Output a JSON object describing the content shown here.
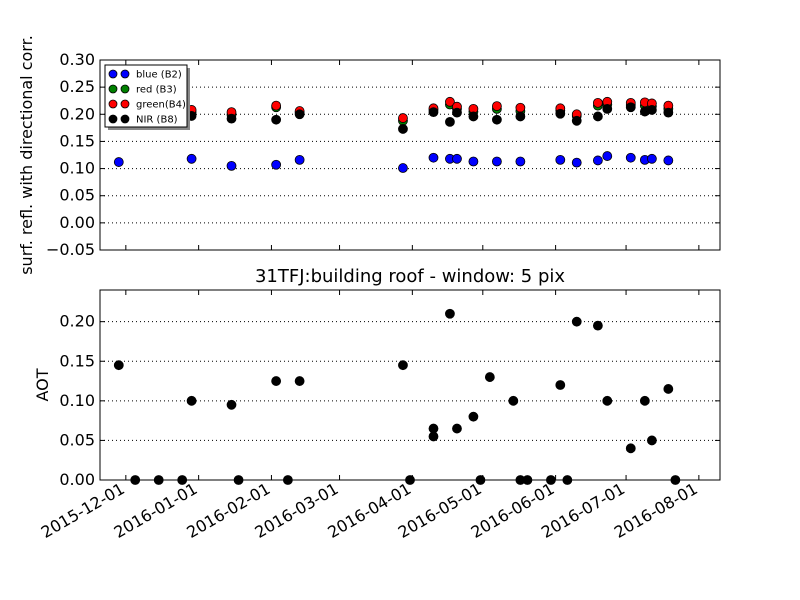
{
  "chart_data": [
    {
      "type": "scatter",
      "title": "",
      "xlabel": "",
      "ylabel": "surf. refl. with directional corr.",
      "ylim": [
        -0.05,
        0.3
      ],
      "yticks": [
        "−0.05",
        "0.00",
        "0.05",
        "0.10",
        "0.15",
        "0.20",
        "0.25",
        "0.30"
      ],
      "ytick_values": [
        -0.05,
        0.0,
        0.05,
        0.1,
        0.15,
        0.2,
        0.25,
        0.3
      ],
      "grid": true,
      "legend_position": "top-left",
      "series": [
        {
          "name": "blue (B2)",
          "color": "#0000ff",
          "x": [
            "2015-11-28",
            "2015-12-29",
            "2016-01-15",
            "2016-02-03",
            "2016-02-13",
            "2016-03-28",
            "2016-04-10",
            "2016-04-17",
            "2016-04-20",
            "2016-04-27",
            "2016-05-07",
            "2016-05-17",
            "2016-06-03",
            "2016-06-10",
            "2016-06-19",
            "2016-06-23",
            "2016-07-03",
            "2016-07-09",
            "2016-07-12",
            "2016-07-19"
          ],
          "y": [
            0.112,
            0.118,
            0.105,
            0.107,
            0.116,
            0.101,
            0.12,
            0.118,
            0.118,
            0.113,
            0.113,
            0.113,
            0.116,
            0.111,
            0.115,
            0.123,
            0.12,
            0.116,
            0.118,
            0.115
          ]
        },
        {
          "name": "red  (B3)",
          "color": "#008000",
          "x": [
            "2015-12-29",
            "2016-01-15",
            "2016-02-03",
            "2016-02-13",
            "2016-03-28",
            "2016-04-10",
            "2016-04-17",
            "2016-04-20",
            "2016-04-27",
            "2016-05-07",
            "2016-05-17",
            "2016-06-03",
            "2016-06-10",
            "2016-06-19",
            "2016-06-23",
            "2016-07-03",
            "2016-07-09",
            "2016-07-12",
            "2016-07-19"
          ],
          "y": [
            0.204,
            0.199,
            0.213,
            0.203,
            0.188,
            0.208,
            0.218,
            0.21,
            0.205,
            0.21,
            0.206,
            0.207,
            0.197,
            0.216,
            0.218,
            0.217,
            0.216,
            0.215,
            0.21
          ]
        },
        {
          "name": "green(B4)",
          "color": "#ff0000",
          "x": [
            "2015-12-29",
            "2016-01-15",
            "2016-02-03",
            "2016-02-13",
            "2016-03-28",
            "2016-04-10",
            "2016-04-17",
            "2016-04-20",
            "2016-04-27",
            "2016-05-07",
            "2016-05-17",
            "2016-06-03",
            "2016-06-10",
            "2016-06-19",
            "2016-06-23",
            "2016-07-03",
            "2016-07-09",
            "2016-07-12",
            "2016-07-19"
          ],
          "y": [
            0.208,
            0.204,
            0.216,
            0.206,
            0.193,
            0.211,
            0.223,
            0.214,
            0.21,
            0.215,
            0.212,
            0.211,
            0.2,
            0.221,
            0.223,
            0.221,
            0.222,
            0.22,
            0.216
          ]
        },
        {
          "name": "NIR  (B8)",
          "color": "#000000",
          "x": [
            "2015-12-29",
            "2016-01-15",
            "2016-02-03",
            "2016-02-13",
            "2016-03-28",
            "2016-04-10",
            "2016-04-17",
            "2016-04-20",
            "2016-04-27",
            "2016-05-07",
            "2016-05-17",
            "2016-06-03",
            "2016-06-10",
            "2016-06-19",
            "2016-06-23",
            "2016-07-03",
            "2016-07-09",
            "2016-07-12",
            "2016-07-19"
          ],
          "y": [
            0.197,
            0.192,
            0.19,
            0.2,
            0.173,
            0.204,
            0.186,
            0.203,
            0.196,
            0.19,
            0.196,
            0.201,
            0.188,
            0.196,
            0.21,
            0.213,
            0.205,
            0.208,
            0.203
          ]
        }
      ]
    },
    {
      "type": "scatter",
      "title": "31TFJ:building roof - window: 5 pix",
      "xlabel": "",
      "ylabel": "AOT",
      "ylim": [
        0.0,
        0.24
      ],
      "yticks": [
        "0.00",
        "0.05",
        "0.10",
        "0.15",
        "0.20"
      ],
      "ytick_values": [
        0.0,
        0.05,
        0.1,
        0.15,
        0.2
      ],
      "grid": true,
      "series": [
        {
          "name": "",
          "color": "#000000",
          "x": [
            "2015-11-28",
            "2015-12-05",
            "2015-12-15",
            "2015-12-25",
            "2015-12-29",
            "2016-01-15",
            "2016-01-18",
            "2016-02-03",
            "2016-02-08",
            "2016-02-13",
            "2016-03-28",
            "2016-03-31",
            "2016-04-10",
            "2016-04-10",
            "2016-04-17",
            "2016-04-20",
            "2016-04-27",
            "2016-04-30",
            "2016-05-04",
            "2016-05-14",
            "2016-05-17",
            "2016-05-20",
            "2016-05-30",
            "2016-06-06",
            "2016-06-03",
            "2016-06-10",
            "2016-06-19",
            "2016-06-23",
            "2016-07-03",
            "2016-07-09",
            "2016-07-12",
            "2016-07-19",
            "2016-07-22"
          ],
          "y": [
            0.145,
            0.0,
            0.0,
            0.0,
            0.1,
            0.095,
            0.0,
            0.125,
            0.0,
            0.125,
            0.145,
            0.0,
            0.065,
            0.055,
            0.21,
            0.065,
            0.08,
            0.0,
            0.13,
            0.1,
            0.0,
            0.0,
            0.0,
            0.0,
            0.12,
            0.2,
            0.195,
            0.1,
            0.04,
            0.1,
            0.05,
            0.115,
            0.0
          ]
        }
      ]
    }
  ],
  "x_axis": {
    "tick_dates": [
      "2015-12-01",
      "2016-01-01",
      "2016-02-01",
      "2016-03-01",
      "2016-04-01",
      "2016-05-01",
      "2016-06-01",
      "2016-07-01",
      "2016-08-01"
    ],
    "tick_labels": [
      "2015-12-01",
      "2016-01-01",
      "2016-02-01",
      "2016-03-01",
      "2016-04-01",
      "2016-05-01",
      "2016-06-01",
      "2016-07-01",
      "2016-08-01"
    ],
    "xlim": [
      "2015-11-20",
      "2016-08-10"
    ]
  }
}
